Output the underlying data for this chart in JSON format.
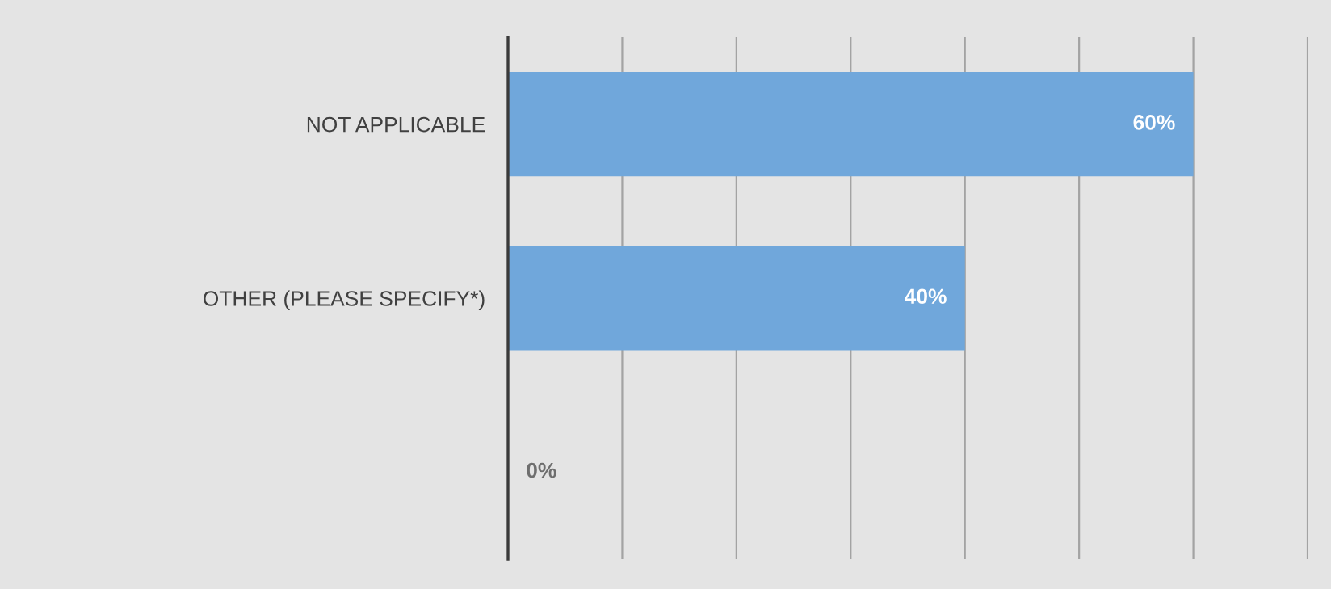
{
  "chart_data": {
    "type": "bar",
    "orientation": "horizontal",
    "categories": [
      "NOT APPLICABLE",
      "OTHER (PLEASE SPECIFY*)",
      null
    ],
    "values": [
      60,
      40,
      0
    ],
    "color": "#70a7db",
    "value_labels": [
      "60%",
      "40%",
      "0%"
    ],
    "xlim": [
      0,
      70
    ],
    "xticks": [
      {
        "value": 0,
        "label": null
      },
      {
        "value": 10,
        "label": null
      },
      {
        "value": 20,
        "label": null
      },
      {
        "value": 30,
        "label": null
      },
      {
        "value": 40,
        "label": null
      },
      {
        "value": 50,
        "label": null
      },
      {
        "value": 60,
        "label": null
      },
      {
        "value": 70,
        "label": null
      }
    ],
    "grid": "x",
    "tick_labels": "y"
  }
}
